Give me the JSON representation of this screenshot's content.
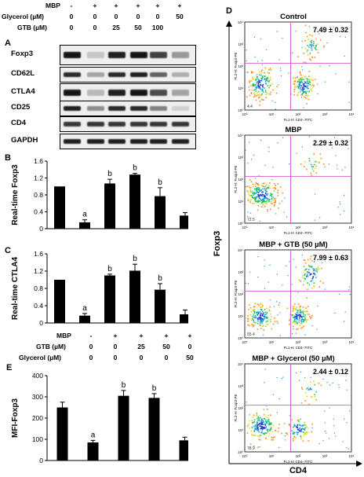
{
  "condition_table_top": {
    "rows": [
      {
        "label": "MBP",
        "values": [
          "-",
          "+",
          "+",
          "+",
          "+",
          "+"
        ]
      },
      {
        "label": "Glycerol (µM)",
        "values": [
          "0",
          "0",
          "0",
          "0",
          "0",
          "50"
        ]
      },
      {
        "label": "GTB (µM)",
        "values": [
          "0",
          "0",
          "25",
          "50",
          "100",
          ""
        ]
      }
    ]
  },
  "panel_A": {
    "letter": "A",
    "blots": [
      "Foxp3",
      "CD62L",
      "CTLA4",
      "CD25",
      "CD4",
      "GAPDH"
    ]
  },
  "panel_B": {
    "letter": "B"
  },
  "panel_C": {
    "letter": "C"
  },
  "panel_E": {
    "letter": "E"
  },
  "condition_table_E": {
    "rows": [
      {
        "label": "MBP",
        "values": [
          "-",
          "+",
          "+",
          "+",
          "+"
        ]
      },
      {
        "label": "GTB (µM)",
        "values": [
          "0",
          "0",
          "25",
          "50",
          "0"
        ]
      },
      {
        "label": "Glycerol (µM)",
        "values": [
          "0",
          "0",
          "0",
          "0",
          "50"
        ]
      }
    ]
  },
  "panel_D": {
    "letter": "D",
    "y_label": "Foxp3",
    "x_label": "CD4",
    "plots": [
      {
        "title": "Control",
        "stat": "7.49 ± 0.32",
        "corner": "4.4"
      },
      {
        "title": "MBP",
        "stat": "2.29 ± 0.32",
        "corner": "72.5"
      },
      {
        "title": "MBP + GTB (50 µM)",
        "stat": "7.99 ± 0.63",
        "corner": "55.4"
      },
      {
        "title": "MBP + Glycerol (50 µM)",
        "stat": "2.44 ± 0.12",
        "corner": "78.9"
      }
    ],
    "axis_y_label": "FL2-H: Foxp3-PE",
    "axis_x_label": "FL1-H: CD4- FITC",
    "ticks": [
      "10⁰",
      "10¹",
      "10²",
      "10³",
      "10⁴"
    ]
  },
  "chart_data": [
    {
      "type": "bar",
      "panel": "B",
      "categories": [
        "1",
        "2",
        "3",
        "4",
        "5",
        "6"
      ],
      "values": [
        1.0,
        0.15,
        1.07,
        1.28,
        0.77,
        0.31
      ],
      "errors": [
        0.0,
        0.06,
        0.1,
        0.03,
        0.2,
        0.07
      ],
      "annotations": [
        "",
        "a",
        "b",
        "b",
        "b",
        ""
      ],
      "ylabel": "Real-time Foxp3",
      "ylim": [
        0,
        1.6
      ],
      "yticks": [
        "0",
        "0.4",
        "0.8",
        "1.2",
        "1.6"
      ]
    },
    {
      "type": "bar",
      "panel": "C",
      "categories": [
        "1",
        "2",
        "3",
        "4",
        "5",
        "6"
      ],
      "values": [
        1.0,
        0.17,
        1.1,
        1.21,
        0.77,
        0.2
      ],
      "errors": [
        0.0,
        0.05,
        0.03,
        0.15,
        0.14,
        0.1
      ],
      "annotations": [
        "",
        "a",
        "b",
        "b",
        "b",
        ""
      ],
      "ylabel": "Real-time CTLA4",
      "ylim": [
        0,
        1.6
      ],
      "yticks": [
        "0",
        "0.4",
        "0.8",
        "1.2",
        "1.6"
      ]
    },
    {
      "type": "bar",
      "panel": "E",
      "categories": [
        "1",
        "2",
        "3",
        "4",
        "5"
      ],
      "values": [
        250,
        85,
        305,
        295,
        95
      ],
      "errors": [
        25,
        10,
        25,
        20,
        15
      ],
      "annotations": [
        "",
        "a",
        "b",
        "b",
        ""
      ],
      "ylabel": "MFI-Foxp3",
      "ylim": [
        0,
        400
      ],
      "yticks": [
        "0",
        "100",
        "200",
        "300",
        "400"
      ]
    }
  ]
}
